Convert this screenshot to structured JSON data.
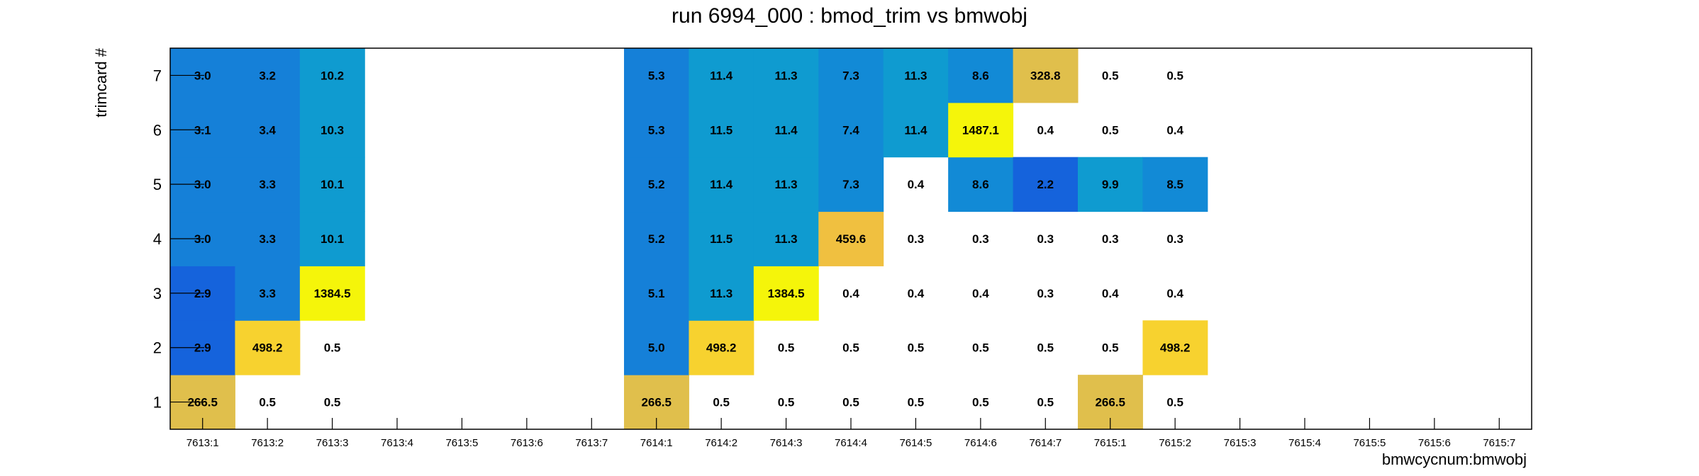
{
  "chart_data": {
    "type": "heatmap",
    "title": "run 6994_000 : bmod_trim vs bmwobj",
    "xlabel": "bmwcycnum:bmwobj",
    "ylabel": "trimcard #",
    "x_categories": [
      "7613:1",
      "7613:2",
      "7613:3",
      "7613:4",
      "7613:5",
      "7613:6",
      "7613:7",
      "7614:1",
      "7614:2",
      "7614:3",
      "7614:4",
      "7614:5",
      "7614:6",
      "7614:7",
      "7615:1",
      "7615:2",
      "7615:3",
      "7615:4",
      "7615:5",
      "7615:6",
      "7615:7"
    ],
    "y_categories": [
      "1",
      "2",
      "3",
      "4",
      "5",
      "6",
      "7"
    ],
    "cells": [
      {
        "x": "7613:1",
        "y": "1",
        "value": "266.5",
        "color": "#e0bf4c"
      },
      {
        "x": "7613:1",
        "y": "2",
        "value": "2.9",
        "color": "#1563dc"
      },
      {
        "x": "7613:1",
        "y": "3",
        "value": "2.9",
        "color": "#1563dc"
      },
      {
        "x": "7613:1",
        "y": "4",
        "value": "3.0",
        "color": "#1580d8"
      },
      {
        "x": "7613:1",
        "y": "5",
        "value": "3.0",
        "color": "#1580d8"
      },
      {
        "x": "7613:1",
        "y": "6",
        "value": "3.1",
        "color": "#1580d8"
      },
      {
        "x": "7613:1",
        "y": "7",
        "value": "3.0",
        "color": "#1580d8"
      },
      {
        "x": "7613:2",
        "y": "1",
        "value": "0.5",
        "color": null
      },
      {
        "x": "7613:2",
        "y": "2",
        "value": "498.2",
        "color": "#f7d22f"
      },
      {
        "x": "7613:2",
        "y": "3",
        "value": "3.3",
        "color": "#1580d8"
      },
      {
        "x": "7613:2",
        "y": "4",
        "value": "3.3",
        "color": "#1580d8"
      },
      {
        "x": "7613:2",
        "y": "5",
        "value": "3.3",
        "color": "#1580d8"
      },
      {
        "x": "7613:2",
        "y": "6",
        "value": "3.4",
        "color": "#1580d8"
      },
      {
        "x": "7613:2",
        "y": "7",
        "value": "3.2",
        "color": "#1580d8"
      },
      {
        "x": "7613:3",
        "y": "1",
        "value": "0.5",
        "color": null
      },
      {
        "x": "7613:3",
        "y": "2",
        "value": "0.5",
        "color": null
      },
      {
        "x": "7613:3",
        "y": "3",
        "value": "1384.5",
        "color": "#f5f50a"
      },
      {
        "x": "7613:3",
        "y": "4",
        "value": "10.1",
        "color": "#0f9bd0"
      },
      {
        "x": "7613:3",
        "y": "5",
        "value": "10.1",
        "color": "#0f9bd0"
      },
      {
        "x": "7613:3",
        "y": "6",
        "value": "10.3",
        "color": "#0f9bd0"
      },
      {
        "x": "7613:3",
        "y": "7",
        "value": "10.2",
        "color": "#0f9bd0"
      },
      {
        "x": "7614:1",
        "y": "1",
        "value": "266.5",
        "color": "#e0bf4c"
      },
      {
        "x": "7614:1",
        "y": "2",
        "value": "5.0",
        "color": "#1580d8"
      },
      {
        "x": "7614:1",
        "y": "3",
        "value": "5.1",
        "color": "#1580d8"
      },
      {
        "x": "7614:1",
        "y": "4",
        "value": "5.2",
        "color": "#1580d8"
      },
      {
        "x": "7614:1",
        "y": "5",
        "value": "5.2",
        "color": "#1580d8"
      },
      {
        "x": "7614:1",
        "y": "6",
        "value": "5.3",
        "color": "#1580d8"
      },
      {
        "x": "7614:1",
        "y": "7",
        "value": "5.3",
        "color": "#1580d8"
      },
      {
        "x": "7614:2",
        "y": "1",
        "value": "0.5",
        "color": null
      },
      {
        "x": "7614:2",
        "y": "2",
        "value": "498.2",
        "color": "#f7d22f"
      },
      {
        "x": "7614:2",
        "y": "3",
        "value": "11.3",
        "color": "#0f9bd0"
      },
      {
        "x": "7614:2",
        "y": "4",
        "value": "11.5",
        "color": "#0f9bd0"
      },
      {
        "x": "7614:2",
        "y": "5",
        "value": "11.4",
        "color": "#0f9bd0"
      },
      {
        "x": "7614:2",
        "y": "6",
        "value": "11.5",
        "color": "#0f9bd0"
      },
      {
        "x": "7614:2",
        "y": "7",
        "value": "11.4",
        "color": "#0f9bd0"
      },
      {
        "x": "7614:3",
        "y": "1",
        "value": "0.5",
        "color": null
      },
      {
        "x": "7614:3",
        "y": "2",
        "value": "0.5",
        "color": null
      },
      {
        "x": "7614:3",
        "y": "3",
        "value": "1384.5",
        "color": "#f5f50a"
      },
      {
        "x": "7614:3",
        "y": "4",
        "value": "11.3",
        "color": "#0f9bd0"
      },
      {
        "x": "7614:3",
        "y": "5",
        "value": "11.3",
        "color": "#0f9bd0"
      },
      {
        "x": "7614:3",
        "y": "6",
        "value": "11.4",
        "color": "#0f9bd0"
      },
      {
        "x": "7614:3",
        "y": "7",
        "value": "11.3",
        "color": "#0f9bd0"
      },
      {
        "x": "7614:4",
        "y": "1",
        "value": "0.5",
        "color": null
      },
      {
        "x": "7614:4",
        "y": "2",
        "value": "0.5",
        "color": null
      },
      {
        "x": "7614:4",
        "y": "3",
        "value": "0.4",
        "color": null
      },
      {
        "x": "7614:4",
        "y": "4",
        "value": "459.6",
        "color": "#f0c040"
      },
      {
        "x": "7614:4",
        "y": "5",
        "value": "7.3",
        "color": "#128ad6"
      },
      {
        "x": "7614:4",
        "y": "6",
        "value": "7.4",
        "color": "#128ad6"
      },
      {
        "x": "7614:4",
        "y": "7",
        "value": "7.3",
        "color": "#128ad6"
      },
      {
        "x": "7614:5",
        "y": "1",
        "value": "0.5",
        "color": null
      },
      {
        "x": "7614:5",
        "y": "2",
        "value": "0.5",
        "color": null
      },
      {
        "x": "7614:5",
        "y": "3",
        "value": "0.4",
        "color": null
      },
      {
        "x": "7614:5",
        "y": "4",
        "value": "0.3",
        "color": null
      },
      {
        "x": "7614:5",
        "y": "5",
        "value": "0.4",
        "color": null
      },
      {
        "x": "7614:5",
        "y": "6",
        "value": "11.4",
        "color": "#0f9bd0"
      },
      {
        "x": "7614:5",
        "y": "7",
        "value": "11.3",
        "color": "#0f9bd0"
      },
      {
        "x": "7614:6",
        "y": "1",
        "value": "0.5",
        "color": null
      },
      {
        "x": "7614:6",
        "y": "2",
        "value": "0.5",
        "color": null
      },
      {
        "x": "7614:6",
        "y": "3",
        "value": "0.4",
        "color": null
      },
      {
        "x": "7614:6",
        "y": "4",
        "value": "0.3",
        "color": null
      },
      {
        "x": "7614:6",
        "y": "5",
        "value": "8.6",
        "color": "#128ad6"
      },
      {
        "x": "7614:6",
        "y": "6",
        "value": "1487.1",
        "color": "#f5f50a"
      },
      {
        "x": "7614:6",
        "y": "7",
        "value": "8.6",
        "color": "#128ad6"
      },
      {
        "x": "7614:7",
        "y": "1",
        "value": "0.5",
        "color": null
      },
      {
        "x": "7614:7",
        "y": "2",
        "value": "0.5",
        "color": null
      },
      {
        "x": "7614:7",
        "y": "3",
        "value": "0.3",
        "color": null
      },
      {
        "x": "7614:7",
        "y": "4",
        "value": "0.3",
        "color": null
      },
      {
        "x": "7614:7",
        "y": "5",
        "value": "2.2",
        "color": "#1563dc"
      },
      {
        "x": "7614:7",
        "y": "6",
        "value": "0.4",
        "color": null
      },
      {
        "x": "7614:7",
        "y": "7",
        "value": "328.8",
        "color": "#e0bf4c"
      },
      {
        "x": "7615:1",
        "y": "1",
        "value": "266.5",
        "color": "#e0bf4c"
      },
      {
        "x": "7615:1",
        "y": "2",
        "value": "0.5",
        "color": null
      },
      {
        "x": "7615:1",
        "y": "3",
        "value": "0.4",
        "color": null
      },
      {
        "x": "7615:1",
        "y": "4",
        "value": "0.3",
        "color": null
      },
      {
        "x": "7615:1",
        "y": "5",
        "value": "9.9",
        "color": "#0f9bd0"
      },
      {
        "x": "7615:1",
        "y": "6",
        "value": "0.5",
        "color": null
      },
      {
        "x": "7615:1",
        "y": "7",
        "value": "0.5",
        "color": null
      },
      {
        "x": "7615:2",
        "y": "1",
        "value": "0.5",
        "color": null
      },
      {
        "x": "7615:2",
        "y": "2",
        "value": "498.2",
        "color": "#f7d22f"
      },
      {
        "x": "7615:2",
        "y": "3",
        "value": "0.4",
        "color": null
      },
      {
        "x": "7615:2",
        "y": "4",
        "value": "0.3",
        "color": null
      },
      {
        "x": "7615:2",
        "y": "5",
        "value": "8.5",
        "color": "#128ad6"
      },
      {
        "x": "7615:2",
        "y": "6",
        "value": "0.4",
        "color": null
      },
      {
        "x": "7615:2",
        "y": "7",
        "value": "0.5",
        "color": null
      }
    ]
  }
}
